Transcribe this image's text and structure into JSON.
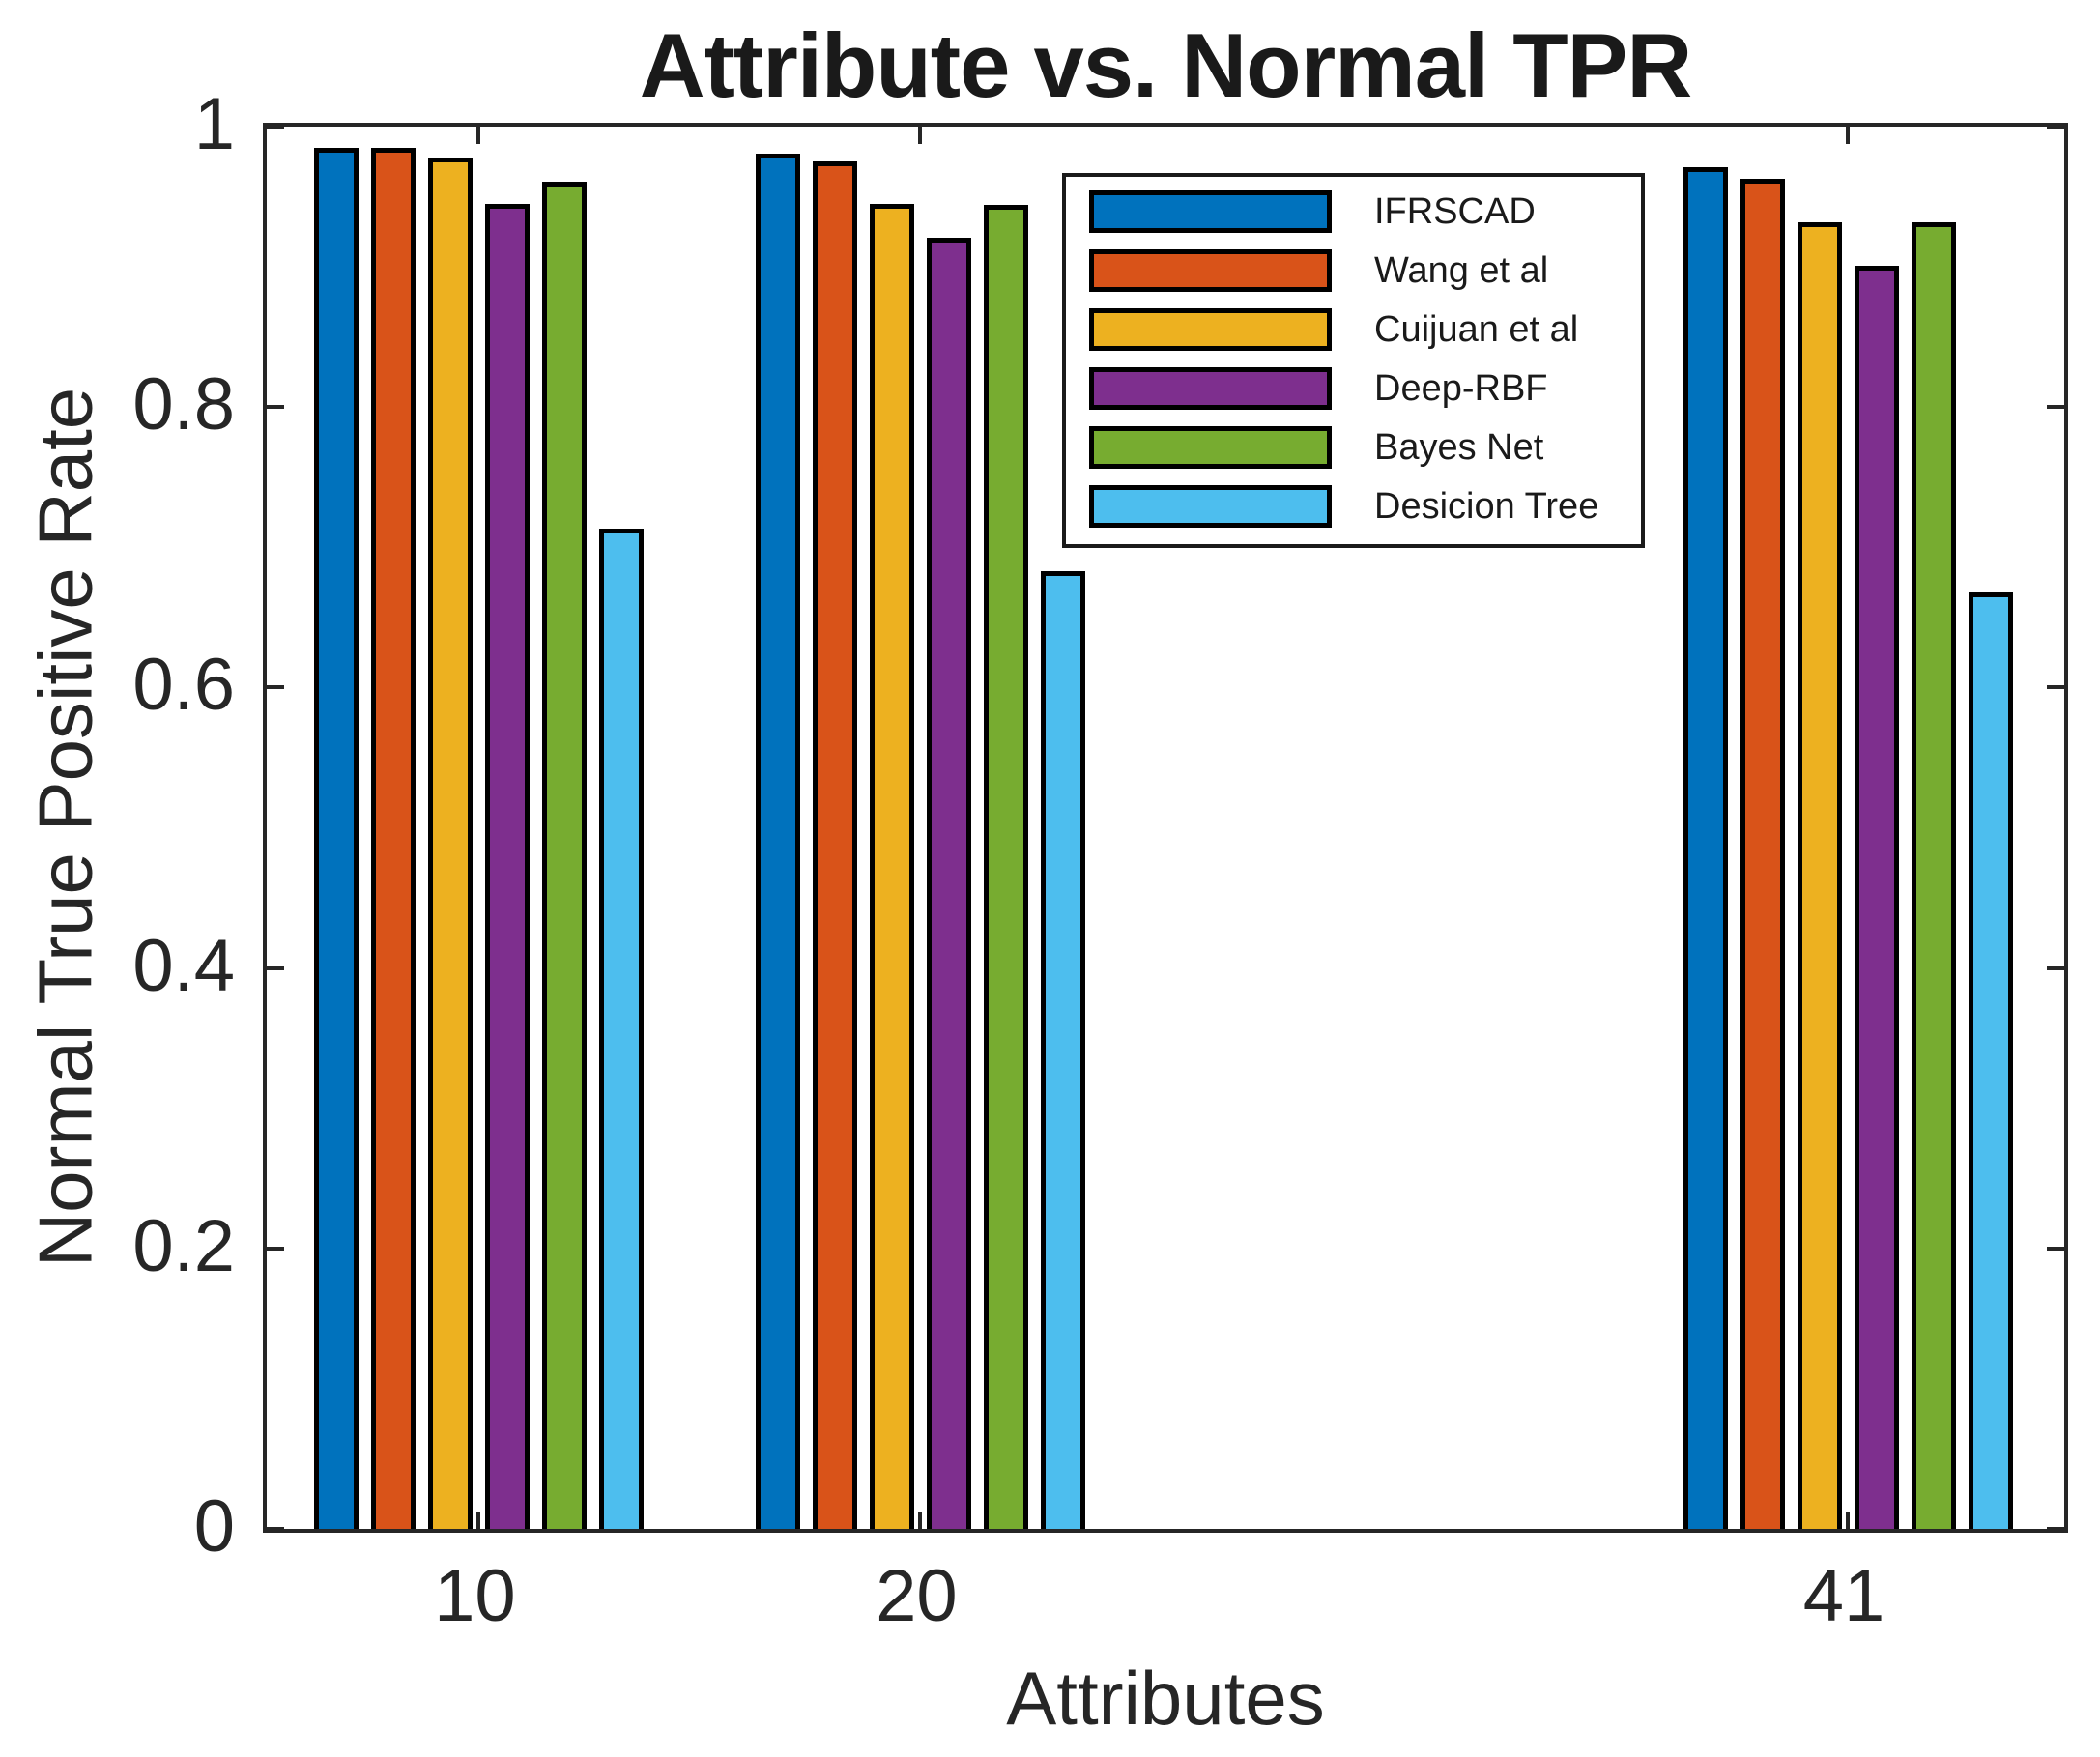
{
  "title": "Attribute vs. Normal TPR",
  "chart_data": {
    "type": "bar",
    "title": "Attribute vs. Normal TPR",
    "xlabel": "Attributes",
    "ylabel": "Normal True Positive Rate",
    "categories": [
      10,
      20,
      41
    ],
    "series": [
      {
        "name": "IFRSCAD",
        "color": "#0072BD",
        "values": [
          0.985,
          0.981,
          0.971
        ]
      },
      {
        "name": "Wang et al",
        "color": "#D95319",
        "values": [
          0.985,
          0.975,
          0.963
        ]
      },
      {
        "name": "Cuijuan et al",
        "color": "#EDB120",
        "values": [
          0.978,
          0.945,
          0.932
        ]
      },
      {
        "name": "Deep-RBF",
        "color": "#7E2F8E",
        "values": [
          0.945,
          0.921,
          0.901
        ]
      },
      {
        "name": "Bayes Net",
        "color": "#77AC30",
        "values": [
          0.961,
          0.944,
          0.932
        ]
      },
      {
        "name": "Desicion Tree",
        "color": "#4DBEEE",
        "values": [
          0.713,
          0.683,
          0.668
        ]
      }
    ],
    "ylim": [
      0,
      1
    ],
    "yticks": [
      0,
      0.2,
      0.4,
      0.6,
      0.8,
      1
    ],
    "xlim": [
      5.2,
      45.9
    ],
    "grid": false,
    "legend_position": "upper-right-inside",
    "bar_edge_color": "#000000",
    "axes_color": "#262626"
  }
}
